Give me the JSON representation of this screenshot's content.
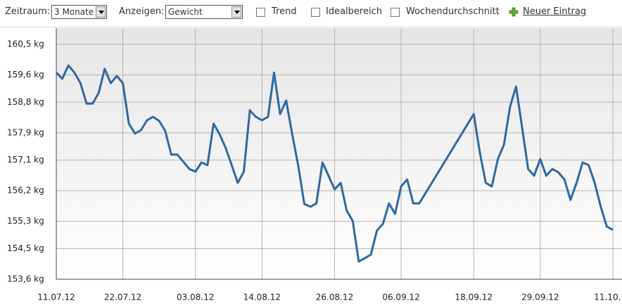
{
  "toolbar": {
    "period_label": "Zeitraum:",
    "period_value": "3 Monate",
    "show_label": "Anzeigen:",
    "show_value": "Gewicht",
    "checkboxes": [
      "Trend",
      "Idealbereich",
      "Wochendurchschnitt"
    ],
    "new_entry": "Neuer Eintrag"
  },
  "chart_data": {
    "type": "line",
    "color": "#2f69a0",
    "grid": true,
    "x": [
      "2012-07-11",
      "2012-07-12",
      "2012-07-13",
      "2012-07-14",
      "2012-07-15",
      "2012-07-16",
      "2012-07-17",
      "2012-07-18",
      "2012-07-19",
      "2012-07-20",
      "2012-07-21",
      "2012-07-22",
      "2012-07-23",
      "2012-07-24",
      "2012-07-25",
      "2012-07-26",
      "2012-07-27",
      "2012-07-28",
      "2012-07-29",
      "2012-07-30",
      "2012-07-31",
      "2012-08-01",
      "2012-08-02",
      "2012-08-03",
      "2012-08-04",
      "2012-08-05",
      "2012-08-06",
      "2012-08-07",
      "2012-08-08",
      "2012-08-09",
      "2012-08-10",
      "2012-08-11",
      "2012-08-12",
      "2012-08-13",
      "2012-08-14",
      "2012-08-15",
      "2012-08-16",
      "2012-08-17",
      "2012-08-18",
      "2012-08-19",
      "2012-08-20",
      "2012-08-21",
      "2012-08-22",
      "2012-08-23",
      "2012-08-24",
      "2012-08-25",
      "2012-08-26",
      "2012-08-27",
      "2012-08-28",
      "2012-08-29",
      "2012-08-30",
      "2012-09-01",
      "2012-09-02",
      "2012-09-03",
      "2012-09-04",
      "2012-09-05",
      "2012-09-06",
      "2012-09-07",
      "2012-09-08",
      "2012-09-09",
      "2012-09-18",
      "2012-09-19",
      "2012-09-20",
      "2012-09-21",
      "2012-09-22",
      "2012-09-23",
      "2012-09-24",
      "2012-09-25",
      "2012-09-26",
      "2012-09-27",
      "2012-09-28",
      "2012-09-29",
      "2012-09-30",
      "2012-10-01",
      "2012-10-02",
      "2012-10-03",
      "2012-10-04",
      "2012-10-05",
      "2012-10-06",
      "2012-10-07",
      "2012-10-08",
      "2012-10-09",
      "2012-10-10",
      "2012-10-11"
    ],
    "values": [
      159.67,
      159.49,
      159.88,
      159.67,
      159.36,
      158.76,
      158.76,
      159.07,
      159.78,
      159.36,
      159.57,
      159.36,
      158.17,
      157.88,
      157.98,
      158.27,
      158.37,
      158.25,
      157.96,
      157.26,
      157.26,
      157.05,
      156.84,
      156.76,
      157.03,
      156.95,
      158.17,
      157.86,
      157.46,
      156.95,
      156.43,
      156.76,
      158.56,
      158.37,
      158.27,
      158.37,
      159.67,
      158.45,
      158.85,
      157.86,
      156.93,
      155.81,
      155.73,
      155.83,
      157.03,
      156.64,
      156.24,
      156.43,
      155.62,
      155.31,
      154.12,
      154.32,
      155.03,
      155.23,
      155.83,
      155.52,
      156.33,
      156.53,
      155.83,
      155.83,
      158.45,
      157.34,
      156.43,
      156.33,
      157.13,
      157.55,
      158.66,
      159.26,
      158.06,
      156.84,
      156.64,
      157.13,
      156.64,
      156.84,
      156.74,
      156.53,
      155.93,
      156.43,
      157.03,
      156.95,
      156.43,
      155.73,
      155.15,
      155.05
    ],
    "xlim": [
      "2012-07-11",
      "2012-10-11"
    ],
    "xticks": [
      {
        "value": "2012-07-11",
        "label": "11.07.12"
      },
      {
        "value": "2012-07-22",
        "label": "22.07.12"
      },
      {
        "value": "2012-08-03",
        "label": "03.08.12"
      },
      {
        "value": "2012-08-14",
        "label": "14.08.12"
      },
      {
        "value": "2012-08-26",
        "label": "26.08.12"
      },
      {
        "value": "2012-09-06",
        "label": "06.09.12"
      },
      {
        "value": "2012-09-18",
        "label": "18.09.12"
      },
      {
        "value": "2012-09-29",
        "label": "29.09.12"
      },
      {
        "value": "2012-10-11",
        "label": "11.10.12"
      }
    ],
    "ylim": [
      153.6,
      160.5
    ],
    "yticks": [
      {
        "value": 153.6,
        "label": "153,6 kg"
      },
      {
        "value": 154.5,
        "label": "154,5 kg"
      },
      {
        "value": 155.3,
        "label": "155,3 kg"
      },
      {
        "value": 156.2,
        "label": "156,2 kg"
      },
      {
        "value": 157.1,
        "label": "157,1 kg"
      },
      {
        "value": 157.9,
        "label": "157,9 kg"
      },
      {
        "value": 158.8,
        "label": "158,8 kg"
      },
      {
        "value": 159.6,
        "label": "159,6 kg"
      },
      {
        "value": 160.5,
        "label": "160,5 kg"
      }
    ]
  }
}
